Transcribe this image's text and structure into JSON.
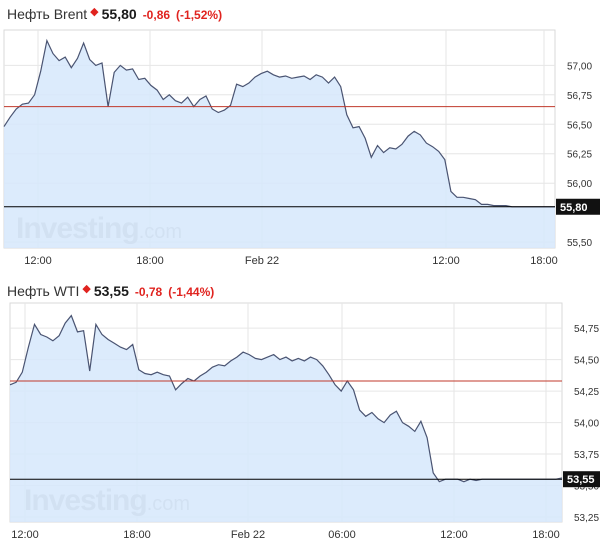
{
  "chart_data": [
    {
      "type": "area",
      "title": "Нефть Brent",
      "last_price": "55,80",
      "change": "-0,86",
      "change_percent": "(-1,52%)",
      "watermark": "Investing.com",
      "x_tick_labels": [
        "12:00",
        "18:00",
        "Feb 22",
        "12:00",
        "18:00"
      ],
      "y_tick_labels": [
        "57,00",
        "56,75",
        "56,50",
        "56,25",
        "56,00",
        "55,50"
      ],
      "ylim": [
        55.45,
        57.3
      ],
      "grid": true,
      "reference_level": 56.65,
      "current_level": 55.8,
      "current_label": "55,80",
      "colors": {
        "line": "#4a5472",
        "fill": "#d6e8fb",
        "reference": "#c0392b",
        "current": "#000000",
        "grid": "#e6e6e6"
      },
      "x": [
        0,
        1,
        2,
        3,
        4,
        5,
        6,
        7,
        8,
        9,
        10,
        11,
        12,
        13,
        14,
        15,
        16,
        17,
        18,
        19,
        20,
        21,
        22,
        23,
        24,
        25,
        26,
        27,
        28,
        29,
        30,
        31,
        32,
        33,
        34,
        35,
        36,
        37,
        38,
        39,
        40,
        41,
        42,
        43,
        44,
        45,
        46,
        47,
        48,
        49,
        50,
        51,
        52,
        53,
        54,
        55,
        56,
        57,
        58,
        59,
        60,
        61,
        62,
        63,
        64,
        65,
        66,
        67,
        68,
        69,
        70,
        71,
        72,
        73,
        74,
        75,
        76,
        77,
        78,
        79,
        80,
        81,
        82,
        83,
        84,
        85,
        86,
        87,
        88,
        89,
        90
      ],
      "y": [
        56.48,
        56.56,
        56.63,
        56.67,
        56.68,
        56.75,
        56.95,
        57.21,
        57.1,
        57.04,
        57.07,
        56.98,
        57.06,
        57.19,
        57.05,
        57.0,
        57.02,
        56.65,
        56.94,
        57.0,
        56.96,
        56.97,
        56.88,
        56.89,
        56.83,
        56.79,
        56.71,
        56.75,
        56.7,
        56.68,
        56.73,
        56.65,
        56.71,
        56.74,
        56.63,
        56.6,
        56.62,
        56.66,
        56.84,
        56.82,
        56.85,
        56.9,
        56.93,
        56.95,
        56.92,
        56.9,
        56.91,
        56.89,
        56.9,
        56.91,
        56.88,
        56.92,
        56.9,
        56.85,
        56.9,
        56.82,
        56.58,
        56.47,
        56.48,
        56.38,
        56.22,
        56.32,
        56.26,
        56.3,
        56.29,
        56.33,
        56.4,
        56.44,
        56.41,
        56.34,
        56.31,
        56.27,
        56.2,
        55.93,
        55.88,
        55.88,
        55.87,
        55.86,
        55.82,
        55.82,
        55.81,
        55.81,
        55.81,
        55.8,
        55.8,
        55.8,
        55.8,
        55.8,
        55.8,
        55.8,
        55.8
      ]
    },
    {
      "type": "area",
      "title": "Нефть WTI",
      "last_price": "53,55",
      "change": "-0,78",
      "change_percent": "(-1,44%)",
      "watermark": "Investing.com",
      "x_tick_labels": [
        "12:00",
        "18:00",
        "Feb 22",
        "06:00",
        "12:00",
        "18:00"
      ],
      "y_tick_labels": [
        "54,75",
        "54,50",
        "54,25",
        "54,00",
        "53,75",
        "53,50",
        "53,25"
      ],
      "ylim": [
        53.21,
        54.95
      ],
      "grid": true,
      "reference_level": 54.33,
      "current_level": 53.55,
      "current_label": "53,55",
      "colors": {
        "line": "#4a5472",
        "fill": "#d6e8fb",
        "reference": "#c0392b",
        "current": "#000000",
        "grid": "#e6e6e6"
      },
      "x": [
        0,
        1,
        2,
        3,
        4,
        5,
        6,
        7,
        8,
        9,
        10,
        11,
        12,
        13,
        14,
        15,
        16,
        17,
        18,
        19,
        20,
        21,
        22,
        23,
        24,
        25,
        26,
        27,
        28,
        29,
        30,
        31,
        32,
        33,
        34,
        35,
        36,
        37,
        38,
        39,
        40,
        41,
        42,
        43,
        44,
        45,
        46,
        47,
        48,
        49,
        50,
        51,
        52,
        53,
        54,
        55,
        56,
        57,
        58,
        59,
        60,
        61,
        62,
        63,
        64,
        65,
        66,
        67,
        68,
        69,
        70,
        71,
        72,
        73,
        74,
        75,
        76,
        77,
        78,
        79,
        80,
        81,
        82,
        83,
        84,
        85,
        86,
        87,
        88,
        89,
        90
      ],
      "y": [
        54.3,
        54.32,
        54.4,
        54.6,
        54.78,
        54.7,
        54.68,
        54.65,
        54.69,
        54.79,
        54.85,
        54.72,
        54.73,
        54.41,
        54.78,
        54.7,
        54.66,
        54.63,
        54.6,
        54.58,
        54.62,
        54.42,
        54.39,
        54.38,
        54.4,
        54.38,
        54.37,
        54.26,
        54.31,
        54.35,
        54.33,
        54.37,
        54.4,
        54.44,
        54.46,
        54.45,
        54.49,
        54.52,
        54.56,
        54.54,
        54.51,
        54.5,
        54.52,
        54.54,
        54.5,
        54.52,
        54.49,
        54.51,
        54.49,
        54.52,
        54.5,
        54.45,
        54.38,
        54.3,
        54.25,
        54.33,
        54.26,
        54.1,
        54.05,
        54.08,
        54.03,
        54.0,
        54.06,
        54.09,
        54.0,
        53.97,
        53.93,
        54.01,
        53.88,
        53.6,
        53.53,
        53.55,
        53.55,
        53.55,
        53.53,
        53.55,
        53.54,
        53.55,
        53.55,
        53.55,
        53.55,
        53.55,
        53.55,
        53.55,
        53.55,
        53.55,
        53.55,
        53.55,
        53.55,
        53.55,
        53.56
      ]
    }
  ]
}
